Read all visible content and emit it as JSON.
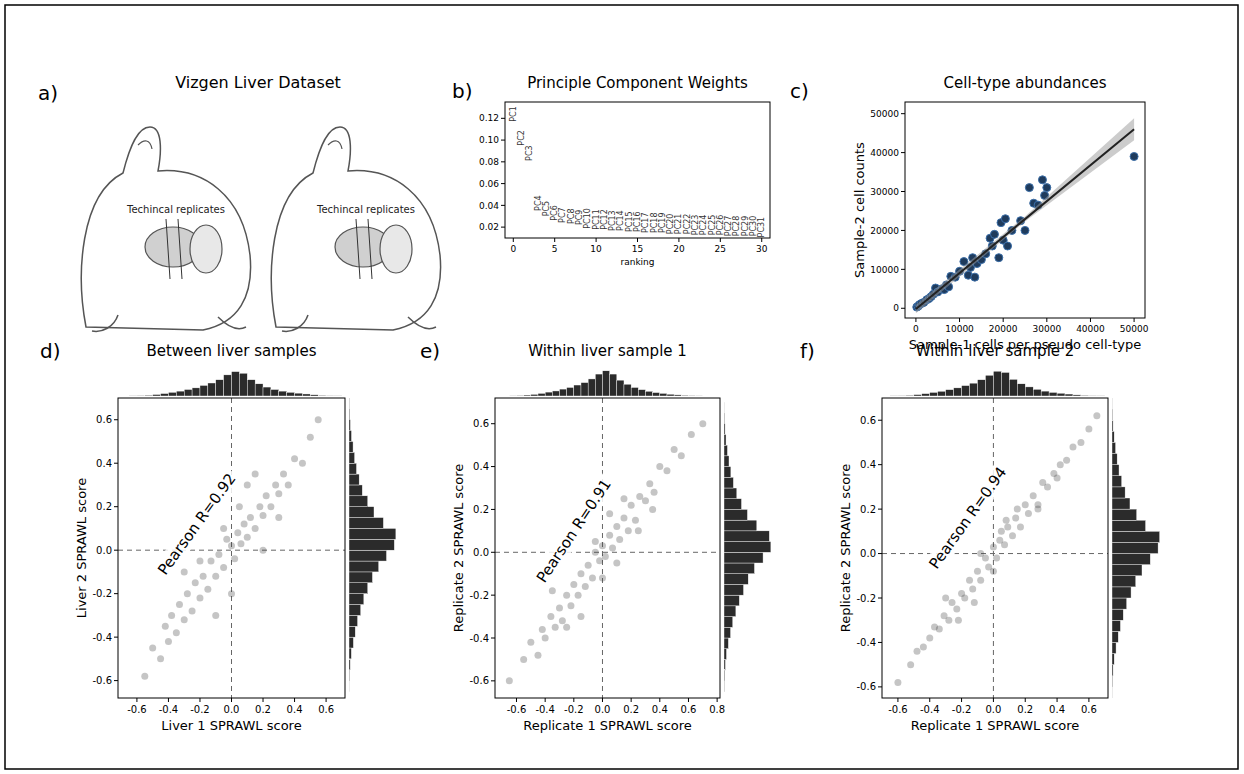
{
  "diagram": {
    "panel_label": "a)",
    "title": "Vizgen Liver Dataset",
    "annotations": [
      "Techincal replicates",
      "Techincal replicates"
    ]
  },
  "chart_data": [
    {
      "type": "scatter",
      "panel_label": "b)",
      "title": "Principle Component Weights",
      "x_label": "ranking",
      "marker": "text",
      "color": "#333333",
      "x": [
        0,
        1,
        2,
        3,
        4,
        5,
        6,
        7,
        8,
        9,
        10,
        11,
        12,
        13,
        14,
        15,
        16,
        17,
        18,
        19,
        20,
        21,
        22,
        23,
        24,
        25,
        26,
        27,
        28,
        29,
        30
      ],
      "values": [
        0.124,
        0.102,
        0.088,
        0.042,
        0.037,
        0.033,
        0.031,
        0.03,
        0.029,
        0.028,
        0.027,
        0.027,
        0.026,
        0.026,
        0.025,
        0.025,
        0.024,
        0.024,
        0.024,
        0.023,
        0.023,
        0.023,
        0.022,
        0.022,
        0.022,
        0.022,
        0.021,
        0.021,
        0.021,
        0.021,
        0.02
      ],
      "point_labels": [
        "PC1",
        "PC2",
        "PC3",
        "PC4",
        "PC5",
        "PC6",
        "PC7",
        "PC8",
        "PC9",
        "PC10",
        "PC11",
        "PC12",
        "PC13",
        "PC14",
        "PC15",
        "PC16",
        "PC17",
        "PC18",
        "PC19",
        "PC20",
        "PC21",
        "PC22",
        "PC23",
        "PC24",
        "PC25",
        "PC26",
        "PC27",
        "PC28",
        "PC29",
        "PC30",
        "PC31"
      ],
      "xlim": [
        -1,
        31
      ],
      "ylim": [
        0.01,
        0.135
      ],
      "xticks": [
        0,
        5,
        10,
        15,
        20,
        25,
        30
      ],
      "yticks": [
        0.02,
        0.04,
        0.06,
        0.08,
        {
          "value": 0.1,
          "label": "0.10"
        },
        0.12
      ],
      "grid": false
    },
    {
      "type": "scatter",
      "panel_label": "c)",
      "title": "Cell-type abundances",
      "x_label": "Sample-1 cells per pseudo cell-type",
      "y_label": "Sample-2 cell counts",
      "series": [
        {
          "type": "scatter",
          "marker": "circle",
          "color": "#1f3b5c",
          "x": [
            200,
            500,
            800,
            1200,
            1800,
            2500,
            3000,
            3500,
            4000,
            4500,
            5000,
            6000,
            6500,
            7000,
            7500,
            8000,
            9000,
            10000,
            11000,
            12000,
            12500,
            13000,
            13500,
            14000,
            15000,
            16000,
            17000,
            17500,
            18000,
            19000,
            19500,
            20000,
            20500,
            21000,
            22000,
            24000,
            25000,
            26000,
            27000,
            28000,
            29000,
            29500,
            30000,
            50000
          ],
          "values": [
            300,
            500,
            900,
            1200,
            1500,
            2200,
            2500,
            3000,
            3600,
            5200,
            4200,
            5000,
            4800,
            6000,
            5500,
            8200,
            8000,
            9500,
            12000,
            8500,
            10500,
            13000,
            8000,
            11500,
            12500,
            14000,
            18000,
            16000,
            19000,
            13000,
            22000,
            17500,
            23000,
            16000,
            20000,
            22500,
            20000,
            31000,
            27000,
            26500,
            33000,
            29000,
            31000,
            39000
          ]
        },
        {
          "type": "line",
          "line_style": "solid",
          "color": "#222222",
          "x": [
            0,
            25000,
            50000
          ],
          "values": [
            -200,
            22900,
            46000
          ],
          "lower": [
            -1300,
            22300,
            43200
          ],
          "upper": [
            900,
            23600,
            48800
          ]
        }
      ],
      "xlim": [
        -2500,
        52500
      ],
      "ylim": [
        -2500,
        53000
      ],
      "xticks": [
        0,
        10000,
        20000,
        30000,
        40000,
        50000
      ],
      "yticks": [
        0,
        10000,
        20000,
        30000,
        40000,
        50000
      ],
      "grid": false
    },
    {
      "type": "scatter",
      "panel_label": "d)",
      "title": "Between liver samples",
      "x_label": "Liver 1 SPRAWL score",
      "y_label": "Liver 2 SPRAWL score",
      "marker": "circle",
      "color": "#404040",
      "x": [
        -0.55,
        -0.5,
        -0.45,
        -0.42,
        -0.4,
        -0.38,
        -0.35,
        -0.33,
        -0.3,
        -0.28,
        -0.25,
        -0.23,
        -0.2,
        -0.18,
        -0.15,
        -0.13,
        -0.1,
        -0.08,
        -0.05,
        -0.03,
        0,
        0.02,
        0.04,
        0.06,
        0.08,
        0.1,
        0.12,
        0.15,
        0.18,
        0.2,
        0.22,
        0.25,
        0.28,
        0.3,
        0.33,
        0.36,
        0.4,
        0.45,
        0.5,
        0.55,
        -0.3,
        -0.1,
        0.1,
        0.2,
        -0.2,
        0.0,
        0.05,
        -0.05,
        0.3,
        0.15
      ],
      "values": [
        -0.58,
        -0.45,
        -0.5,
        -0.35,
        -0.42,
        -0.3,
        -0.38,
        -0.25,
        -0.32,
        -0.2,
        -0.28,
        -0.15,
        -0.22,
        -0.12,
        -0.18,
        -0.05,
        -0.12,
        -0.02,
        -0.08,
        0.05,
        0.02,
        -0.04,
        0.08,
        0.03,
        0.12,
        0.06,
        0.15,
        0.1,
        0.2,
        0.16,
        0.25,
        0.2,
        0.3,
        0.26,
        0.35,
        0.3,
        0.42,
        0.4,
        0.52,
        0.6,
        -0.1,
        -0.3,
        0.3,
        0.0,
        -0.05,
        -0.2,
        0.2,
        0.1,
        0.15,
        0.35
      ],
      "xlim": [
        -0.72,
        0.72
      ],
      "ylim": [
        -0.68,
        0.7
      ],
      "xticks": [
        -0.6,
        -0.4,
        -0.2,
        {
          "value": 0,
          "label": "0.0"
        },
        0.2,
        0.4,
        0.6
      ],
      "yticks": [
        -0.6,
        -0.4,
        -0.2,
        {
          "value": 0,
          "label": "0.0"
        },
        0.2,
        0.4,
        0.6
      ],
      "hlines": [
        0
      ],
      "vlines": [
        0
      ],
      "annotations": [
        {
          "text": "Pearson R=0.92",
          "x": -0.22,
          "y": 0.12
        }
      ],
      "x_hist": {
        "bins": [
          -0.65,
          -0.6,
          -0.55,
          -0.5,
          -0.45,
          -0.4,
          -0.35,
          -0.3,
          -0.25,
          -0.2,
          -0.15,
          -0.1,
          -0.05,
          0,
          0.05,
          0.1,
          0.15,
          0.2,
          0.25,
          0.3,
          0.35,
          0.4,
          0.45,
          0.5,
          0.55,
          0.6,
          0.65,
          0.7
        ],
        "counts": [
          2,
          5,
          10,
          18,
          30,
          45,
          60,
          80,
          100,
          130,
          160,
          200,
          260,
          300,
          280,
          200,
          150,
          110,
          80,
          60,
          45,
          35,
          25,
          15,
          8,
          4,
          2
        ],
        "lim": [
          0,
          320
        ]
      },
      "y_hist": {
        "bins": [
          -0.65,
          -0.6,
          -0.55,
          -0.5,
          -0.45,
          -0.4,
          -0.35,
          -0.3,
          -0.25,
          -0.2,
          -0.15,
          -0.1,
          -0.05,
          0,
          0.05,
          0.1,
          0.15,
          0.2,
          0.25,
          0.3,
          0.35,
          0.4,
          0.45,
          0.5,
          0.55,
          0.6,
          0.65,
          0.7
        ],
        "counts": [
          1,
          3,
          8,
          15,
          28,
          40,
          55,
          75,
          95,
          120,
          150,
          190,
          240,
          290,
          300,
          220,
          160,
          120,
          85,
          65,
          48,
          36,
          26,
          16,
          9,
          4,
          2
        ],
        "lim": [
          0,
          320
        ]
      },
      "grid": false
    },
    {
      "type": "scatter",
      "panel_label": "e)",
      "title": "Within liver sample 1",
      "x_label": "Replicate 1 SPRAWL score",
      "y_label": "Replicate 2 SPRAWL score",
      "marker": "circle",
      "color": "#404040",
      "x": [
        -0.65,
        -0.55,
        -0.5,
        -0.45,
        -0.42,
        -0.4,
        -0.36,
        -0.33,
        -0.3,
        -0.28,
        -0.25,
        -0.22,
        -0.2,
        -0.17,
        -0.15,
        -0.12,
        -0.1,
        -0.07,
        -0.05,
        -0.02,
        0,
        0.02,
        0.05,
        0.07,
        0.1,
        0.12,
        0.15,
        0.18,
        0.2,
        0.23,
        0.26,
        0.3,
        0.33,
        0.36,
        0.4,
        0.45,
        0.5,
        0.55,
        0.62,
        0.7,
        -0.35,
        -0.15,
        0.05,
        0.25,
        -0.25,
        0.1,
        -0.05,
        0.15,
        0.35,
        0.0
      ],
      "values": [
        -0.6,
        -0.5,
        -0.42,
        -0.48,
        -0.36,
        -0.4,
        -0.3,
        -0.35,
        -0.26,
        -0.32,
        -0.2,
        -0.25,
        -0.15,
        -0.2,
        -0.1,
        -0.16,
        -0.06,
        -0.12,
        0.0,
        -0.04,
        0.03,
        -0.02,
        0.08,
        0.02,
        0.12,
        0.06,
        0.16,
        0.1,
        0.22,
        0.15,
        0.26,
        0.24,
        0.32,
        0.28,
        0.4,
        0.38,
        0.48,
        0.45,
        0.55,
        0.6,
        -0.18,
        -0.3,
        0.18,
        0.1,
        -0.35,
        -0.05,
        0.05,
        0.25,
        0.2,
        -0.12
      ],
      "xlim": [
        -0.75,
        0.82
      ],
      "ylim": [
        -0.68,
        0.72
      ],
      "xticks": [
        -0.6,
        -0.4,
        -0.2,
        {
          "value": 0,
          "label": "0.0"
        },
        0.2,
        0.4,
        0.6,
        0.8
      ],
      "yticks": [
        -0.6,
        -0.4,
        -0.2,
        {
          "value": 0,
          "label": "0.0"
        },
        0.2,
        0.4,
        0.6
      ],
      "hlines": [
        0
      ],
      "vlines": [
        0
      ],
      "annotations": [
        {
          "text": "Pearson R=0.91",
          "x": -0.2,
          "y": 0.1
        }
      ],
      "x_hist": {
        "bins": [
          -0.65,
          -0.6,
          -0.55,
          -0.5,
          -0.45,
          -0.4,
          -0.35,
          -0.3,
          -0.25,
          -0.2,
          -0.15,
          -0.1,
          -0.05,
          0,
          0.05,
          0.1,
          0.15,
          0.2,
          0.25,
          0.3,
          0.35,
          0.4,
          0.45,
          0.5,
          0.55,
          0.6,
          0.65,
          0.7
        ],
        "counts": [
          3,
          6,
          12,
          20,
          32,
          48,
          62,
          85,
          105,
          135,
          165,
          210,
          270,
          310,
          270,
          195,
          145,
          105,
          78,
          58,
          42,
          32,
          22,
          14,
          9,
          5,
          3
        ],
        "lim": [
          0,
          320
        ]
      },
      "y_hist": {
        "bins": [
          -0.65,
          -0.6,
          -0.55,
          -0.5,
          -0.45,
          -0.4,
          -0.35,
          -0.3,
          -0.25,
          -0.2,
          -0.15,
          -0.1,
          -0.05,
          0,
          0.05,
          0.1,
          0.15,
          0.2,
          0.25,
          0.3,
          0.35,
          0.4,
          0.45,
          0.5,
          0.55,
          0.6,
          0.65,
          0.7
        ],
        "counts": [
          2,
          4,
          9,
          16,
          28,
          42,
          56,
          76,
          98,
          125,
          155,
          195,
          250,
          300,
          290,
          210,
          150,
          112,
          82,
          60,
          44,
          32,
          22,
          13,
          7,
          3,
          1
        ],
        "lim": [
          0,
          320
        ]
      },
      "grid": false
    },
    {
      "type": "scatter",
      "panel_label": "f)",
      "title": "Within liver sample 2",
      "x_label": "Replicate 1 SPRAWL score",
      "y_label": "Replicate 2 SPRAWL score",
      "marker": "circle",
      "color": "#404040",
      "x": [
        -0.6,
        -0.52,
        -0.48,
        -0.44,
        -0.4,
        -0.37,
        -0.34,
        -0.31,
        -0.28,
        -0.26,
        -0.23,
        -0.2,
        -0.18,
        -0.15,
        -0.13,
        -0.1,
        -0.08,
        -0.05,
        -0.03,
        0,
        0.02,
        0.04,
        0.07,
        0.09,
        0.12,
        0.14,
        0.17,
        0.2,
        0.22,
        0.25,
        0.28,
        0.31,
        0.34,
        0.38,
        0.42,
        0.46,
        0.5,
        0.55,
        0.6,
        0.65,
        -0.3,
        -0.12,
        0.08,
        0.28,
        -0.22,
        0.0,
        0.15,
        -0.08,
        0.4,
        0.05
      ],
      "values": [
        -0.58,
        -0.5,
        -0.44,
        -0.42,
        -0.38,
        -0.33,
        -0.34,
        -0.28,
        -0.3,
        -0.22,
        -0.25,
        -0.18,
        -0.2,
        -0.12,
        -0.16,
        -0.08,
        -0.12,
        -0.02,
        -0.06,
        0.03,
        -0.02,
        0.06,
        0.04,
        0.12,
        0.08,
        0.16,
        0.12,
        0.22,
        0.18,
        0.26,
        0.22,
        0.32,
        0.3,
        0.36,
        0.4,
        0.42,
        0.48,
        0.5,
        0.56,
        0.62,
        -0.2,
        -0.22,
        0.15,
        0.2,
        -0.3,
        -0.08,
        0.2,
        0.0,
        0.34,
        0.1
      ],
      "xlim": [
        -0.7,
        0.72
      ],
      "ylim": [
        -0.65,
        0.7
      ],
      "xticks": [
        -0.6,
        -0.4,
        -0.2,
        {
          "value": 0,
          "label": "0.0"
        },
        0.2,
        0.4,
        0.6
      ],
      "yticks": [
        -0.6,
        -0.4,
        -0.2,
        {
          "value": 0,
          "label": "0.0"
        },
        0.2,
        0.4,
        0.6
      ],
      "hlines": [
        0
      ],
      "vlines": [
        0
      ],
      "annotations": [
        {
          "text": "Pearson R=0.94",
          "x": -0.16,
          "y": 0.16
        }
      ],
      "x_hist": {
        "bins": [
          -0.65,
          -0.6,
          -0.55,
          -0.5,
          -0.45,
          -0.4,
          -0.35,
          -0.3,
          -0.25,
          -0.2,
          -0.15,
          -0.1,
          -0.05,
          0,
          0.05,
          0.1,
          0.15,
          0.2,
          0.25,
          0.3,
          0.35,
          0.4,
          0.45,
          0.5,
          0.55,
          0.6,
          0.65,
          0.7
        ],
        "counts": [
          2,
          4,
          9,
          17,
          29,
          44,
          58,
          78,
          100,
          128,
          158,
          200,
          255,
          305,
          290,
          205,
          150,
          112,
          82,
          60,
          44,
          34,
          24,
          14,
          8,
          4,
          2
        ],
        "lim": [
          0,
          320
        ]
      },
      "y_hist": {
        "bins": [
          -0.65,
          -0.6,
          -0.55,
          -0.5,
          -0.45,
          -0.4,
          -0.35,
          -0.3,
          -0.25,
          -0.2,
          -0.15,
          -0.1,
          -0.05,
          0,
          0.05,
          0.1,
          0.15,
          0.2,
          0.25,
          0.3,
          0.35,
          0.4,
          0.45,
          0.5,
          0.55,
          0.6,
          0.65,
          0.7
        ],
        "counts": [
          1,
          3,
          7,
          14,
          26,
          40,
          54,
          72,
          94,
          122,
          152,
          192,
          245,
          295,
          305,
          215,
          158,
          115,
          84,
          62,
          45,
          33,
          23,
          14,
          7,
          3,
          1
        ],
        "lim": [
          0,
          320
        ]
      },
      "grid": false
    }
  ]
}
